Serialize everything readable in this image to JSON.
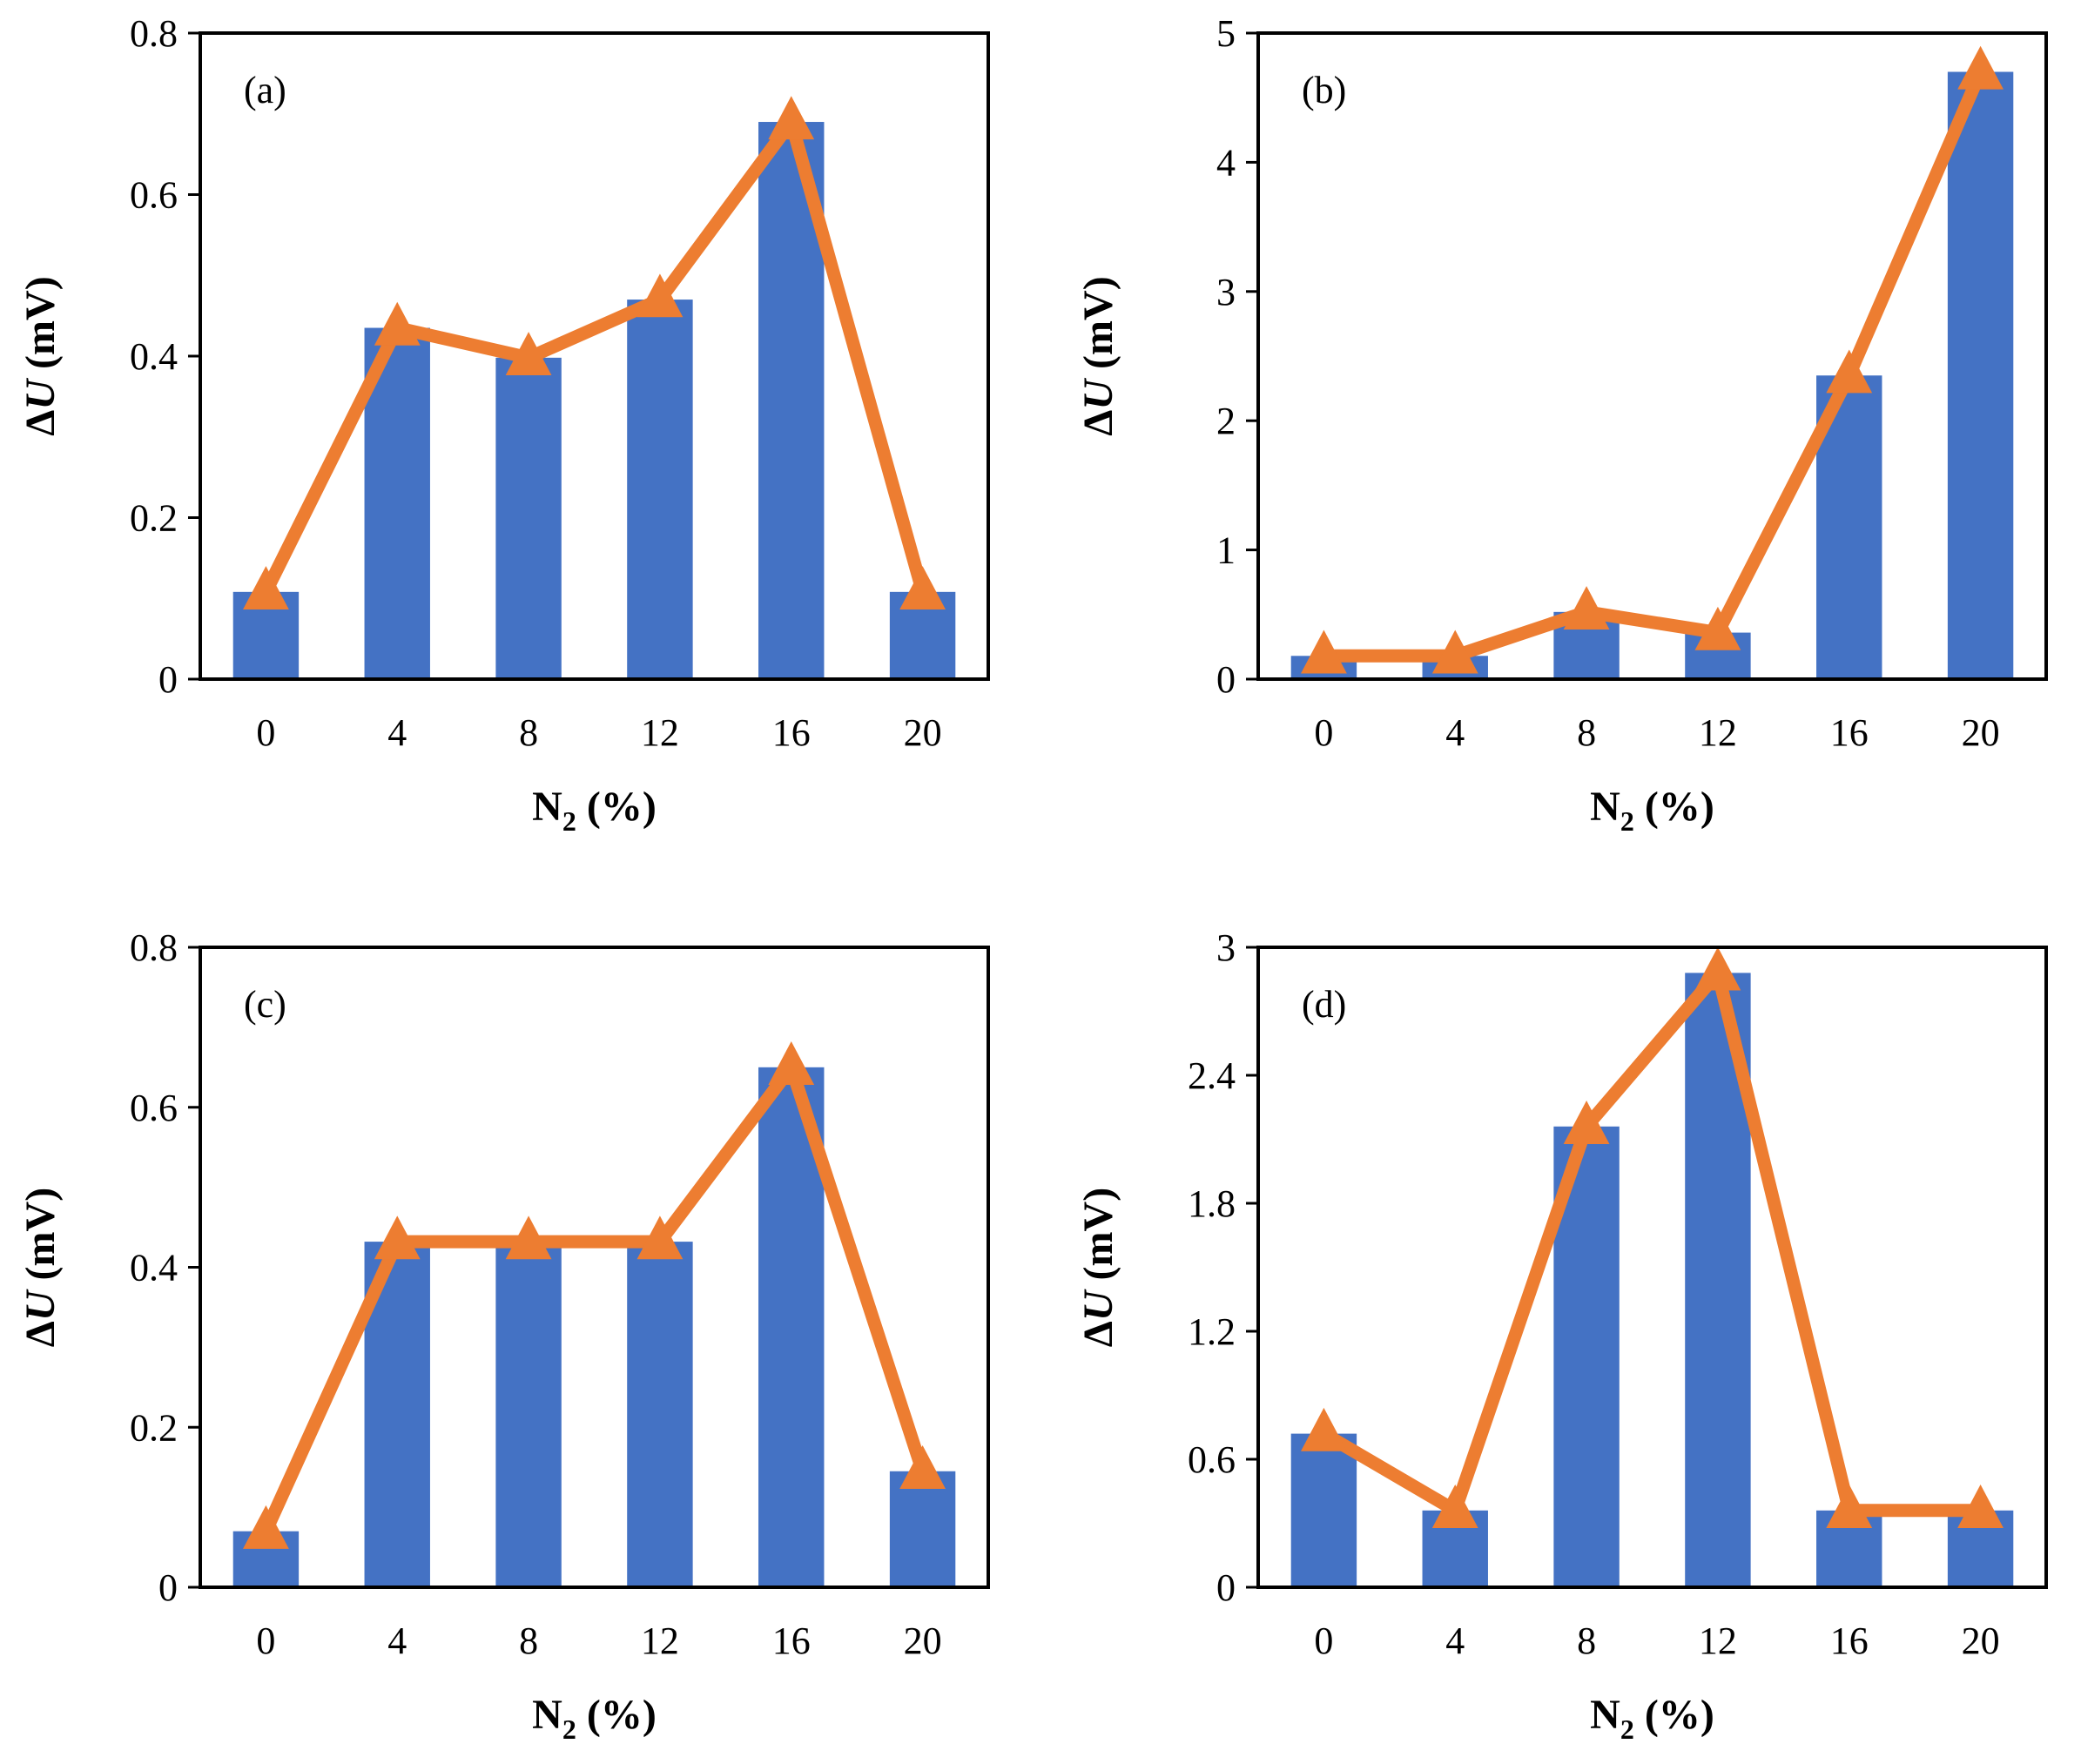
{
  "colors": {
    "bar": "#4472C4",
    "line": "#ED7D31",
    "axis": "#000000"
  },
  "chart_data": [
    {
      "type": "bar+line",
      "panel": "(a)",
      "categories": [
        "0",
        "4",
        "8",
        "12",
        "16",
        "20"
      ],
      "bar_values": [
        0.108,
        0.435,
        0.398,
        0.47,
        0.69,
        0.108
      ],
      "line_values": [
        0.108,
        0.435,
        0.398,
        0.47,
        0.69,
        0.108
      ],
      "ylim": [
        0,
        0.8
      ],
      "yticks": [
        "0",
        "0.2",
        "0.4",
        "0.6",
        "0.8"
      ],
      "xlabel_main": "N",
      "xlabel_sub": "2",
      "xlabel_rest": " (%)",
      "ylabel_delta": "Δ",
      "ylabel_var": "U",
      "ylabel_rest": " (mV)"
    },
    {
      "type": "bar+line",
      "panel": "(b)",
      "categories": [
        "0",
        "4",
        "8",
        "12",
        "16",
        "20"
      ],
      "bar_values": [
        0.18,
        0.18,
        0.52,
        0.36,
        2.35,
        4.7
      ],
      "line_values": [
        0.18,
        0.18,
        0.52,
        0.36,
        2.35,
        4.7
      ],
      "ylim": [
        0,
        5
      ],
      "yticks": [
        "0",
        "1",
        "2",
        "3",
        "4",
        "5"
      ],
      "xlabel_main": "N",
      "xlabel_sub": "2",
      "xlabel_rest": " (%)",
      "ylabel_delta": "Δ",
      "ylabel_var": "U",
      "ylabel_rest": " (mV)"
    },
    {
      "type": "bar+line",
      "panel": "(c)",
      "categories": [
        "0",
        "4",
        "8",
        "12",
        "16",
        "20"
      ],
      "bar_values": [
        0.07,
        0.432,
        0.432,
        0.432,
        0.65,
        0.145
      ],
      "line_values": [
        0.07,
        0.432,
        0.432,
        0.432,
        0.65,
        0.145
      ],
      "ylim": [
        0,
        0.8
      ],
      "yticks": [
        "0",
        "0.2",
        "0.4",
        "0.6",
        "0.8"
      ],
      "xlabel_main": "N",
      "xlabel_sub": "2",
      "xlabel_rest": " (%)",
      "ylabel_delta": "Δ",
      "ylabel_var": "U",
      "ylabel_rest": " (mV)"
    },
    {
      "type": "bar+line",
      "panel": "(d)",
      "categories": [
        "0",
        "4",
        "8",
        "12",
        "16",
        "20"
      ],
      "bar_values": [
        0.72,
        0.36,
        2.16,
        2.88,
        0.36,
        0.36
      ],
      "line_values": [
        0.72,
        0.36,
        2.16,
        2.88,
        0.36,
        0.36
      ],
      "ylim": [
        0,
        3
      ],
      "yticks": [
        "0",
        "0.6",
        "1.2",
        "1.8",
        "2.4",
        "3"
      ],
      "xlabel_main": "N",
      "xlabel_sub": "2",
      "xlabel_rest": " (%)",
      "ylabel_delta": "Δ",
      "ylabel_var": "U",
      "ylabel_rest": " (mV)"
    }
  ]
}
